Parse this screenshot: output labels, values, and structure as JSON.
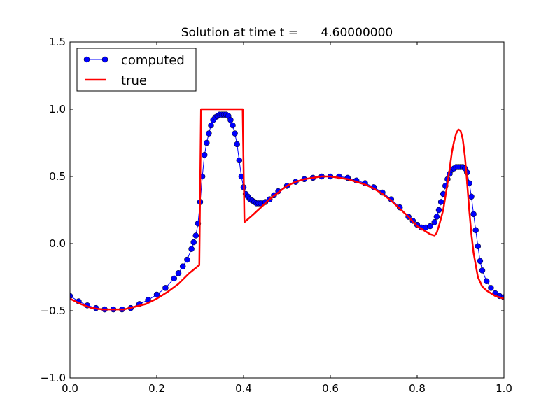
{
  "chart_data": {
    "type": "line",
    "title": "Solution at time t =      4.60000000",
    "xlabel": "",
    "ylabel": "",
    "xlim": [
      0.0,
      1.0
    ],
    "ylim": [
      -1.0,
      1.5
    ],
    "grid": false,
    "legend_position": "top-left",
    "x_ticks": [
      0.0,
      0.2,
      0.4,
      0.6,
      0.8,
      1.0
    ],
    "x_tick_labels": [
      "0.0",
      "0.2",
      "0.4",
      "0.6",
      "0.8",
      "1.0"
    ],
    "y_ticks": [
      -1.0,
      -0.5,
      0.0,
      0.5,
      1.0,
      1.5
    ],
    "y_tick_labels": [
      "−1.0",
      "−0.5",
      "0.0",
      "0.5",
      "1.0",
      "1.5"
    ],
    "series": [
      {
        "name": "computed",
        "color": "#0000ff",
        "style": "line-with-markers",
        "x": [
          0.0,
          0.02,
          0.04,
          0.06,
          0.08,
          0.1,
          0.12,
          0.14,
          0.16,
          0.18,
          0.2,
          0.22,
          0.24,
          0.25,
          0.26,
          0.27,
          0.28,
          0.285,
          0.29,
          0.295,
          0.3,
          0.305,
          0.31,
          0.315,
          0.32,
          0.325,
          0.33,
          0.335,
          0.34,
          0.345,
          0.35,
          0.355,
          0.36,
          0.365,
          0.37,
          0.375,
          0.38,
          0.385,
          0.39,
          0.395,
          0.4,
          0.405,
          0.41,
          0.415,
          0.42,
          0.425,
          0.43,
          0.435,
          0.44,
          0.45,
          0.46,
          0.47,
          0.48,
          0.5,
          0.52,
          0.54,
          0.56,
          0.58,
          0.6,
          0.62,
          0.64,
          0.66,
          0.68,
          0.7,
          0.72,
          0.74,
          0.76,
          0.78,
          0.79,
          0.8,
          0.81,
          0.82,
          0.83,
          0.84,
          0.845,
          0.85,
          0.855,
          0.86,
          0.865,
          0.87,
          0.875,
          0.88,
          0.885,
          0.89,
          0.895,
          0.9,
          0.905,
          0.91,
          0.915,
          0.92,
          0.925,
          0.93,
          0.935,
          0.94,
          0.945,
          0.95,
          0.96,
          0.97,
          0.98,
          0.99,
          1.0
        ],
        "values": [
          -0.39,
          -0.43,
          -0.46,
          -0.48,
          -0.49,
          -0.49,
          -0.49,
          -0.48,
          -0.45,
          -0.42,
          -0.38,
          -0.33,
          -0.26,
          -0.22,
          -0.17,
          -0.12,
          -0.04,
          0.01,
          0.06,
          0.15,
          0.31,
          0.5,
          0.66,
          0.75,
          0.82,
          0.88,
          0.92,
          0.94,
          0.95,
          0.96,
          0.96,
          0.96,
          0.96,
          0.95,
          0.92,
          0.88,
          0.82,
          0.74,
          0.62,
          0.5,
          0.42,
          0.37,
          0.35,
          0.33,
          0.32,
          0.31,
          0.3,
          0.3,
          0.3,
          0.31,
          0.33,
          0.36,
          0.39,
          0.43,
          0.46,
          0.48,
          0.49,
          0.5,
          0.5,
          0.5,
          0.49,
          0.47,
          0.45,
          0.42,
          0.38,
          0.33,
          0.27,
          0.2,
          0.17,
          0.14,
          0.12,
          0.12,
          0.13,
          0.16,
          0.2,
          0.25,
          0.31,
          0.37,
          0.43,
          0.48,
          0.52,
          0.55,
          0.56,
          0.57,
          0.57,
          0.57,
          0.57,
          0.56,
          0.53,
          0.45,
          0.35,
          0.22,
          0.1,
          -0.02,
          -0.13,
          -0.2,
          -0.28,
          -0.33,
          -0.37,
          -0.39,
          -0.4
        ]
      },
      {
        "name": "true",
        "color": "#ff0000",
        "style": "line",
        "x": [
          0.0,
          0.025,
          0.05,
          0.075,
          0.1,
          0.125,
          0.15,
          0.175,
          0.2,
          0.225,
          0.25,
          0.275,
          0.298,
          0.302,
          0.32,
          0.34,
          0.36,
          0.38,
          0.398,
          0.402,
          0.42,
          0.44,
          0.46,
          0.48,
          0.5,
          0.52,
          0.54,
          0.56,
          0.58,
          0.6,
          0.62,
          0.64,
          0.66,
          0.68,
          0.7,
          0.72,
          0.74,
          0.76,
          0.78,
          0.8,
          0.81,
          0.82,
          0.83,
          0.84,
          0.845,
          0.85,
          0.86,
          0.87,
          0.875,
          0.88,
          0.885,
          0.89,
          0.895,
          0.9,
          0.905,
          0.91,
          0.915,
          0.92,
          0.925,
          0.93,
          0.94,
          0.95,
          0.96,
          0.97,
          0.98,
          0.99,
          1.0
        ],
        "values": [
          -0.41,
          -0.45,
          -0.48,
          -0.49,
          -0.49,
          -0.49,
          -0.47,
          -0.45,
          -0.41,
          -0.36,
          -0.3,
          -0.22,
          -0.16,
          1.0,
          1.0,
          1.0,
          1.0,
          1.0,
          1.0,
          0.16,
          0.21,
          0.27,
          0.33,
          0.38,
          0.43,
          0.46,
          0.48,
          0.49,
          0.5,
          0.5,
          0.49,
          0.48,
          0.46,
          0.44,
          0.41,
          0.37,
          0.32,
          0.26,
          0.2,
          0.13,
          0.11,
          0.09,
          0.07,
          0.06,
          0.08,
          0.13,
          0.25,
          0.45,
          0.56,
          0.68,
          0.76,
          0.82,
          0.85,
          0.84,
          0.78,
          0.65,
          0.46,
          0.25,
          0.07,
          -0.07,
          -0.25,
          -0.32,
          -0.35,
          -0.37,
          -0.39,
          -0.4,
          -0.41
        ]
      }
    ]
  }
}
